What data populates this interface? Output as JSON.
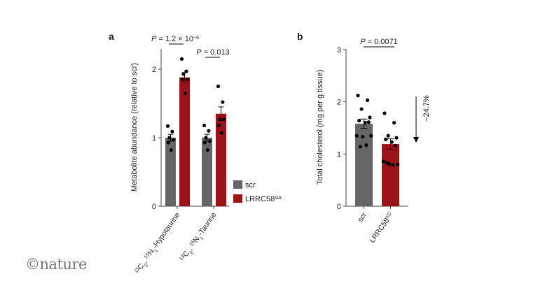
{
  "logo_text": "©nature",
  "colors": {
    "scr": "#666666",
    "lrrc": "#9b1219",
    "points": "#000000"
  },
  "chart_data": [
    {
      "panel": "a",
      "type": "bar",
      "ylabel": "Metabolite abundance (relative to scr)",
      "ylim": [
        0,
        2.3
      ],
      "yticks": [
        "0",
        "1",
        "2"
      ],
      "categories": [
        "13C2,15N1-Hypotaurine",
        "13C2,15N1-Taurine"
      ],
      "category_labels": [
        {
          "pre": "13",
          "a": "C",
          "s1": "2",
          "mid": ", ",
          "pre2": "15",
          "b": "N",
          "s2": "1",
          "post": "-Hypotaurine"
        },
        {
          "pre": "13",
          "a": "C",
          "s1": "2",
          "mid": ", ",
          "pre2": "15",
          "b": "N",
          "s2": "1",
          "post": "-Taurine"
        }
      ],
      "legend": [
        {
          "name": "scr",
          "sup": ""
        },
        {
          "name": "LRRC58",
          "sup": "siA"
        }
      ],
      "legend_position": "right",
      "series": [
        {
          "name": "scr",
          "values": [
            1.0,
            1.0
          ],
          "sem": [
            0.05,
            0.05
          ],
          "points": [
            [
              1.17,
              1.09,
              1.0,
              0.97,
              0.93,
              0.82
            ],
            [
              1.18,
              1.1,
              1.0,
              0.95,
              0.93,
              0.82
            ]
          ]
        },
        {
          "name": "LRRC58siA",
          "values": [
            1.88,
            1.35
          ],
          "sem": [
            0.07,
            0.1
          ],
          "points": [
            [
              2.15,
              1.97,
              1.93,
              1.85,
              1.85,
              1.65
            ],
            [
              1.75,
              1.52,
              1.27,
              1.27,
              1.18,
              1.07
            ]
          ]
        }
      ],
      "annotations": [
        {
          "text": "P = 1.2 × 10",
          "sup": "−6"
        },
        {
          "text": "P = 0.013",
          "sup": ""
        }
      ]
    },
    {
      "panel": "b",
      "type": "bar",
      "ylabel": "Total cholesterol (mg per g tissue)",
      "ylim": [
        0,
        3
      ],
      "yticks": [
        "0",
        "1",
        "2",
        "3"
      ],
      "categories": [
        "scr",
        "LRRC58KD"
      ],
      "category_labels": [
        {
          "name": "scr",
          "sup": ""
        },
        {
          "name": "LRRC58",
          "sup": "KD"
        }
      ],
      "values": [
        1.58,
        1.19
      ],
      "sem": [
        0.09,
        0.1
      ],
      "points": [
        [
          2.12,
          2.03,
          1.86,
          1.7,
          1.64,
          1.6,
          1.61,
          1.35,
          1.35,
          1.33,
          1.17,
          1.14
        ],
        [
          1.78,
          1.6,
          1.35,
          1.31,
          1.28,
          1.23,
          1.16,
          0.86,
          0.8,
          0.81,
          0.79,
          0.83
        ]
      ],
      "annotations": [
        {
          "text": "P = 0.0071"
        },
        {
          "text": "−24.7%"
        }
      ]
    }
  ]
}
